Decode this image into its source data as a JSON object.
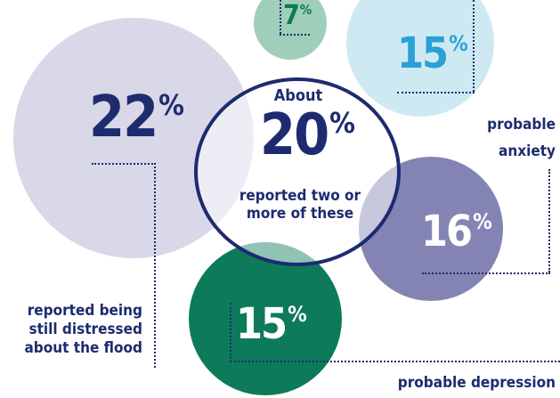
{
  "colors": {
    "navy": "#1e2b6f",
    "teal": "#2aa1d6",
    "green": "#0d7a5a",
    "lavender": "#d8d8e8",
    "light_blue": "#cfe9f3",
    "mint": "#9fcfb8",
    "purple": "#8484b4"
  },
  "stats": {
    "distressed": {
      "value": "22",
      "unit": "%",
      "label_lines": [
        "reported being",
        "still distressed",
        "about the flood"
      ]
    },
    "top": {
      "value": "7",
      "unit": "%"
    },
    "anxiety": {
      "value": "15",
      "unit": "%",
      "label_lines": [
        "probable",
        "anxiety"
      ]
    },
    "combined": {
      "prefix": "About",
      "value": "20",
      "unit": "%",
      "label_lines": [
        "reported two or",
        "more of these"
      ]
    },
    "purple": {
      "value": "16",
      "unit": "%"
    },
    "depression": {
      "value": "15",
      "unit": "%",
      "label": "probable depression"
    }
  }
}
